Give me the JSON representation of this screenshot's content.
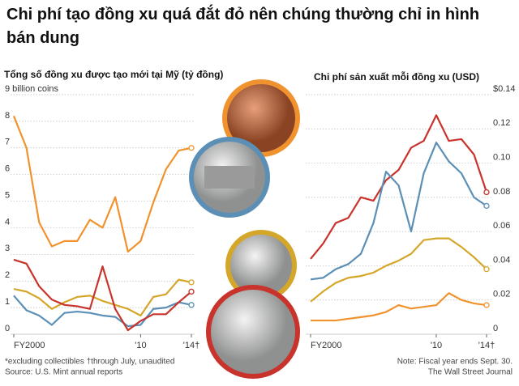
{
  "title": "Chi phí tạo đồng xu quá đắt đỏ nên chúng thường chỉ in hình bán dung",
  "notes_left": [
    "*excluding collectibles  †through July, unaudited",
    "Source: U.S. Mint annual reports"
  ],
  "notes_right": [
    "Note: Fiscal year ends Sept. 30.",
    "The Wall Street Journal"
  ],
  "chart_data": [
    {
      "type": "line",
      "title": "Tổng số đồng xu được tạo mới tại Mỹ (tỷ đồng)",
      "x": [
        2000,
        2001,
        2002,
        2003,
        2004,
        2005,
        2006,
        2007,
        2008,
        2009,
        2010,
        2011,
        2012,
        2013,
        2014
      ],
      "xlim": [
        2000,
        2014
      ],
      "xticks": [
        {
          "value": 2000,
          "label": "FY2000"
        },
        {
          "value": 2010,
          "label": "'10"
        },
        {
          "value": 2014,
          "label": "'14†"
        }
      ],
      "ylim": [
        0,
        9
      ],
      "yticks": [
        0,
        1,
        2,
        3,
        4,
        5,
        6,
        7,
        8,
        {
          "value": 9,
          "label": "9 billion coins"
        }
      ],
      "grid": true,
      "tick_side": "left",
      "series": [
        {
          "color": "#f0922e",
          "values": [
            8.2,
            7.0,
            4.2,
            3.3,
            3.5,
            3.5,
            4.3,
            4.0,
            5.15,
            3.1,
            3.5,
            4.95,
            6.2,
            6.9,
            7.0
          ]
        },
        {
          "color": "#5b8fb5",
          "values": [
            1.45,
            0.9,
            0.7,
            0.35,
            0.8,
            0.85,
            0.8,
            0.7,
            0.65,
            0.3,
            0.35,
            0.95,
            1.0,
            1.2,
            1.1
          ]
        },
        {
          "color": "#d4a62a",
          "values": [
            1.7,
            1.6,
            1.35,
            0.95,
            1.2,
            1.4,
            1.45,
            1.25,
            1.1,
            0.95,
            0.7,
            1.4,
            1.5,
            2.05,
            1.95
          ]
        },
        {
          "color": "#c8342c",
          "values": [
            2.8,
            2.65,
            1.8,
            1.3,
            1.1,
            1.05,
            0.95,
            2.55,
            0.95,
            0.15,
            0.5,
            0.75,
            0.75,
            1.2,
            1.6
          ]
        }
      ]
    },
    {
      "type": "line",
      "title": "Chi phí sản xuất mỗi đồng xu (USD)",
      "x": [
        2000,
        2001,
        2002,
        2003,
        2004,
        2005,
        2006,
        2007,
        2008,
        2009,
        2010,
        2011,
        2012,
        2013,
        2014
      ],
      "xlim": [
        2000,
        2014
      ],
      "xticks": [
        {
          "value": 2000,
          "label": "FY2000"
        },
        {
          "value": 2010,
          "label": "'10"
        },
        {
          "value": 2014,
          "label": "'14†"
        }
      ],
      "ylim": [
        0,
        0.14
      ],
      "yticks": [
        0,
        0.02,
        0.04,
        0.06,
        0.08,
        {
          "value": 0.1,
          "label": "0.10"
        },
        0.12,
        {
          "value": 0.14,
          "label": "$0.14"
        }
      ],
      "grid": true,
      "tick_side": "right",
      "series": [
        {
          "color": "#c8342c",
          "values": [
            0.044,
            0.053,
            0.065,
            0.068,
            0.08,
            0.078,
            0.09,
            0.096,
            0.109,
            0.113,
            0.128,
            0.113,
            0.114,
            0.105,
            0.083
          ]
        },
        {
          "color": "#5b8fb5",
          "values": [
            0.032,
            0.033,
            0.038,
            0.041,
            0.047,
            0.065,
            0.095,
            0.087,
            0.06,
            0.094,
            0.112,
            0.101,
            0.094,
            0.08,
            0.075
          ]
        },
        {
          "color": "#d4a62a",
          "values": [
            0.019,
            0.025,
            0.03,
            0.033,
            0.034,
            0.036,
            0.04,
            0.043,
            0.047,
            0.055,
            0.056,
            0.056,
            0.051,
            0.045,
            0.038
          ]
        },
        {
          "color": "#f0922e",
          "values": [
            0.008,
            0.008,
            0.008,
            0.009,
            0.01,
            0.011,
            0.013,
            0.017,
            0.015,
            0.016,
            0.017,
            0.024,
            0.02,
            0.018,
            0.017
          ]
        }
      ]
    }
  ]
}
